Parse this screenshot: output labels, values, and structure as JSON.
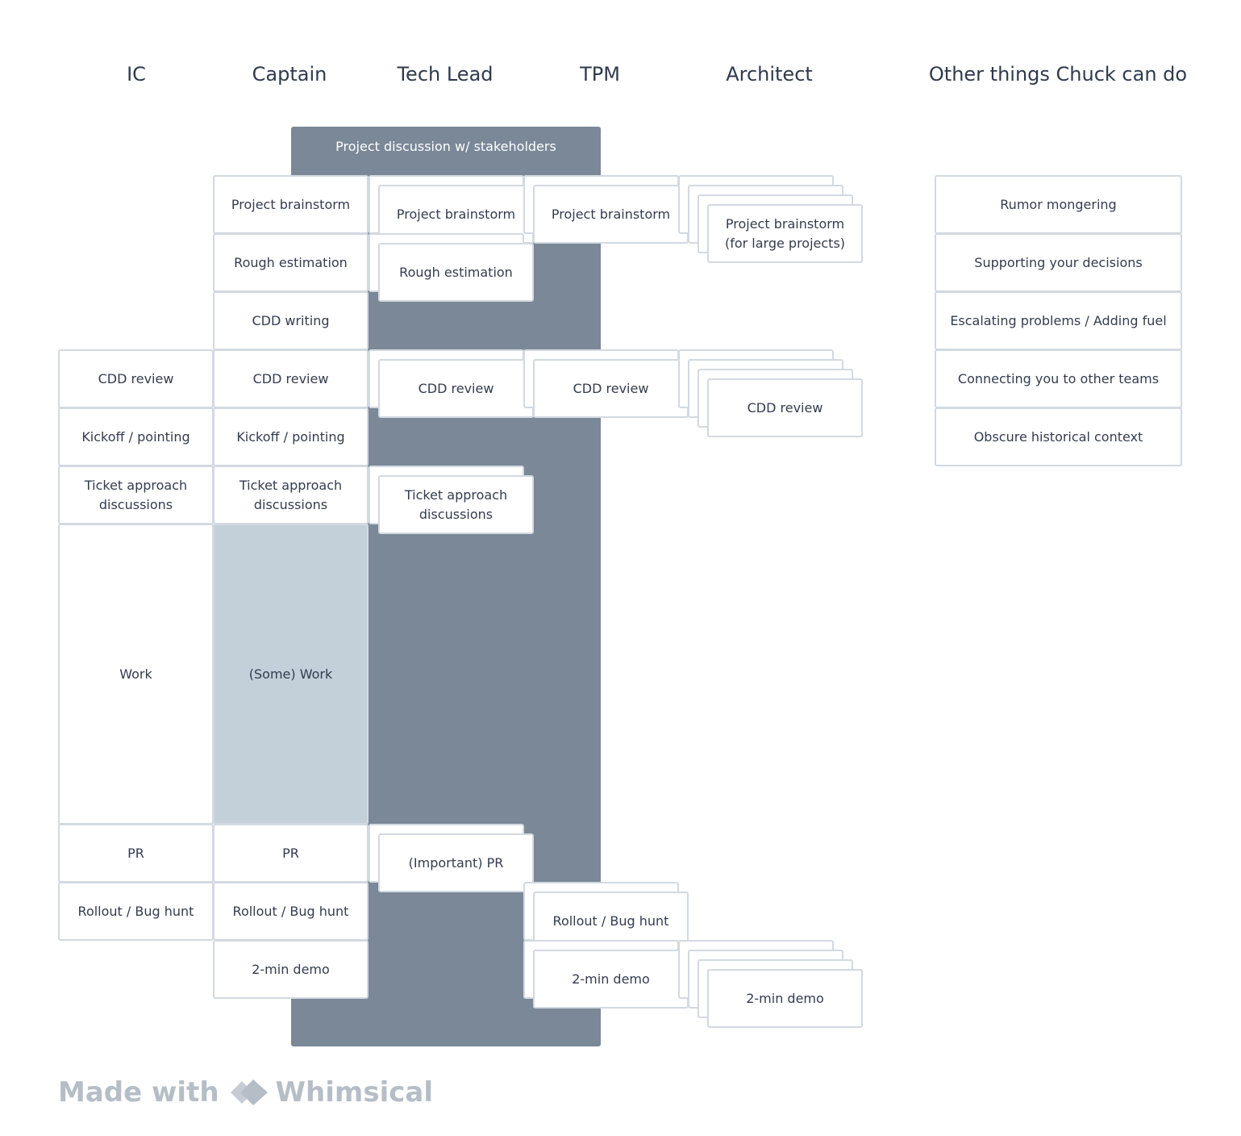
{
  "headers": {
    "ic": "IC",
    "captain": "Captain",
    "tech_lead": "Tech Lead",
    "tpm": "TPM",
    "architect": "Architect",
    "other": "Other things Chuck can do"
  },
  "stakeholder_bar": "Project discussion w/ stakeholders",
  "ic": {
    "cdd_review": "CDD review",
    "kickoff": "Kickoff / pointing",
    "ticket_approach": "Ticket approach\ndiscussions",
    "work": "Work",
    "pr": "PR",
    "rollout": "Rollout / Bug hunt"
  },
  "captain": {
    "brainstorm": "Project brainstorm",
    "estimation": "Rough estimation",
    "cdd_writing": "CDD writing",
    "cdd_review": "CDD review",
    "kickoff": "Kickoff / pointing",
    "ticket_approach": "Ticket approach\ndiscussions",
    "work": "(Some) Work",
    "pr": "PR",
    "rollout": "Rollout / Bug hunt",
    "demo": "2-min demo"
  },
  "tech_lead": {
    "brainstorm": "Project brainstorm",
    "estimation": "Rough estimation",
    "cdd_review": "CDD review",
    "ticket_approach": "Ticket approach\ndiscussions",
    "pr": "(Important) PR"
  },
  "tpm": {
    "brainstorm": "Project brainstorm",
    "cdd_review": "CDD review",
    "rollout": "Rollout / Bug hunt",
    "demo": "2-min demo"
  },
  "architect": {
    "brainstorm": "Project brainstorm\n(for large projects)",
    "cdd_review": "CDD review",
    "demo": "2-min demo"
  },
  "other": [
    "Rumor mongering",
    "Supporting your decisions",
    "Escalating problems / Adding fuel",
    "Connecting you to other teams",
    "Obscure historical context"
  ],
  "footer": {
    "made_with": "Made with",
    "brand": "Whimsical"
  }
}
